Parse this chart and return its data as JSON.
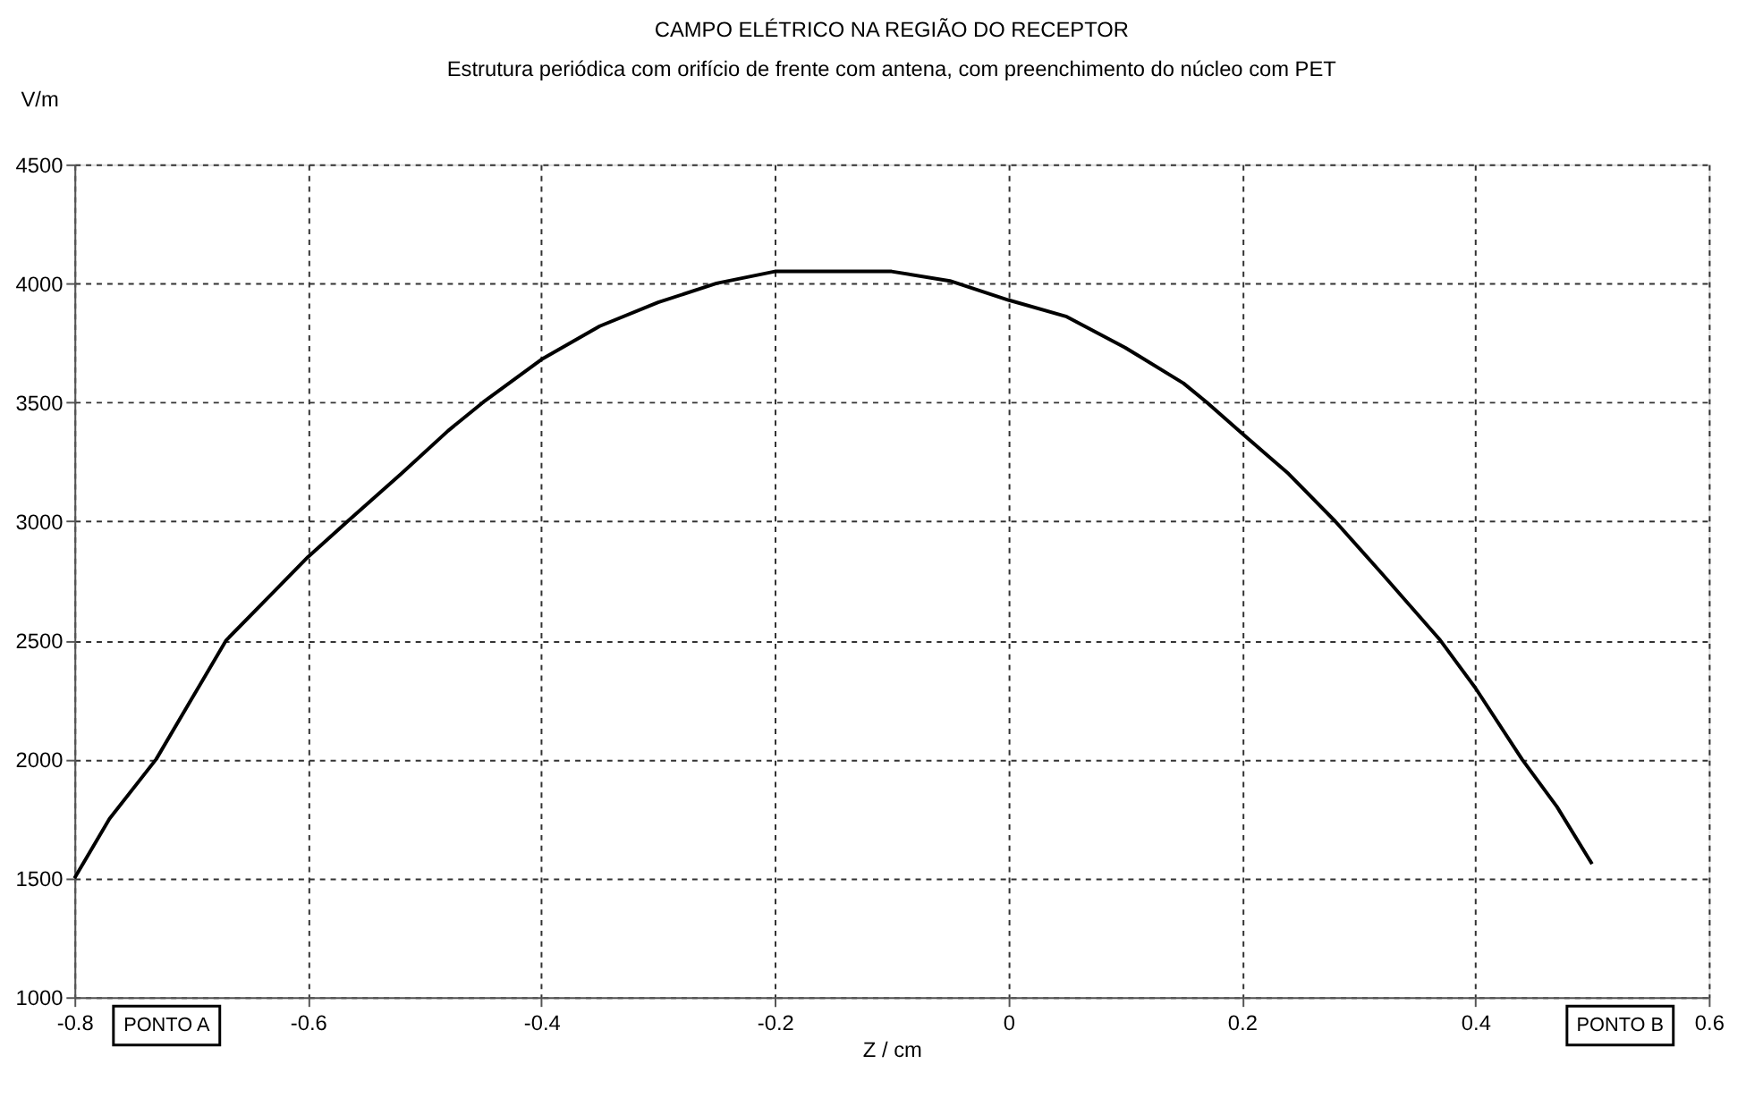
{
  "chart_data": {
    "type": "line",
    "title": "CAMPO ELÉTRICO NA REGIÃO DO RECEPTOR",
    "subtitle": "Estrutura periódica com orifício de frente com antena, com preenchimento do núcleo com PET",
    "xlabel": "Z / cm",
    "ylabel": "V/m",
    "x": [
      -0.8,
      -0.77,
      -0.73,
      -0.7,
      -0.67,
      -0.63,
      -0.6,
      -0.566,
      -0.52,
      -0.48,
      -0.45,
      -0.4,
      -0.35,
      -0.3,
      -0.25,
      -0.2,
      -0.15,
      -0.1,
      -0.05,
      0,
      0.05,
      0.1,
      0.15,
      0.17,
      0.2,
      0.24,
      0.28,
      0.32,
      0.37,
      0.4,
      0.44,
      0.47,
      0.5
    ],
    "series": [
      {
        "color": "#000000",
        "values": [
          1500,
          1750,
          2000,
          2250,
          2500,
          2700,
          2850,
          3000,
          3200,
          3380,
          3500,
          3680,
          3820,
          3920,
          4000,
          4050,
          4050,
          4050,
          4010,
          3930,
          3860,
          3730,
          3580,
          3500,
          3370,
          3200,
          3000,
          2780,
          2500,
          2300,
          2000,
          1800,
          1560
        ]
      }
    ],
    "xlim": [
      -0.8,
      0.6
    ],
    "xticks": [
      -0.8,
      -0.6,
      -0.4,
      -0.2,
      0,
      0.2,
      0.4,
      0.6
    ],
    "ylim": [
      1000,
      4500
    ],
    "yticks": [
      1000,
      1500,
      2000,
      2500,
      3000,
      3500,
      4000,
      4500
    ],
    "grid": true,
    "line_style": "solid",
    "marker": "none",
    "annotations": [
      "PONTO A",
      "PONTO B"
    ]
  }
}
